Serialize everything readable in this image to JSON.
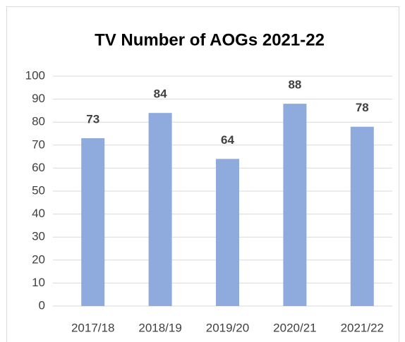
{
  "chart_data": {
    "type": "bar",
    "title": "TV Number of AOGs 2021-22",
    "categories": [
      "2017/18",
      "2018/19",
      "2019/20",
      "2020/21",
      "2021/22"
    ],
    "values": [
      73,
      84,
      64,
      88,
      78
    ],
    "color": "#8faadc",
    "ylim": [
      0,
      100
    ],
    "yticks": [
      0,
      10,
      20,
      30,
      40,
      50,
      60,
      70,
      80,
      90,
      100
    ],
    "grid": true
  }
}
